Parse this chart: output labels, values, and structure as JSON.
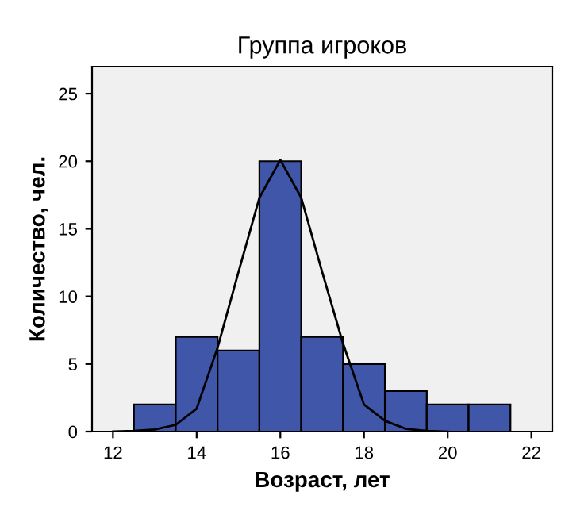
{
  "chart_data": {
    "type": "histogram",
    "title": "Группа игроков",
    "xlabel": "Возраст, лет",
    "ylabel": "Количество, чел.",
    "bins": [
      12.5,
      13.5,
      14.5,
      15.5,
      16.5,
      17.5,
      18.5,
      19.5,
      20.5,
      21.5
    ],
    "values": [
      2,
      7,
      6,
      20,
      7,
      5,
      3,
      2,
      2
    ],
    "color": "#3f56a9",
    "series": [
      {
        "type": "line",
        "color": "#000000",
        "x": [
          12.0,
          12.5,
          13.0,
          13.5,
          14.0,
          14.5,
          15.0,
          15.5,
          16.0,
          16.5,
          17.0,
          17.5,
          18.0,
          18.5,
          19.0,
          19.5,
          20.0
        ],
        "values": [
          0.0,
          0.05,
          0.15,
          0.5,
          1.7,
          6.2,
          11.8,
          17.3,
          20.1,
          17.3,
          11.8,
          6.5,
          2.0,
          0.8,
          0.2,
          0.05,
          0.0
        ]
      }
    ],
    "xlim": [
      11.5,
      22.5
    ],
    "xticks": [
      12,
      14,
      16,
      18,
      20,
      22
    ],
    "ylim": [
      0,
      27
    ],
    "yticks": [
      0,
      5,
      10,
      15,
      20,
      25
    ],
    "grid": false,
    "legend": false
  }
}
